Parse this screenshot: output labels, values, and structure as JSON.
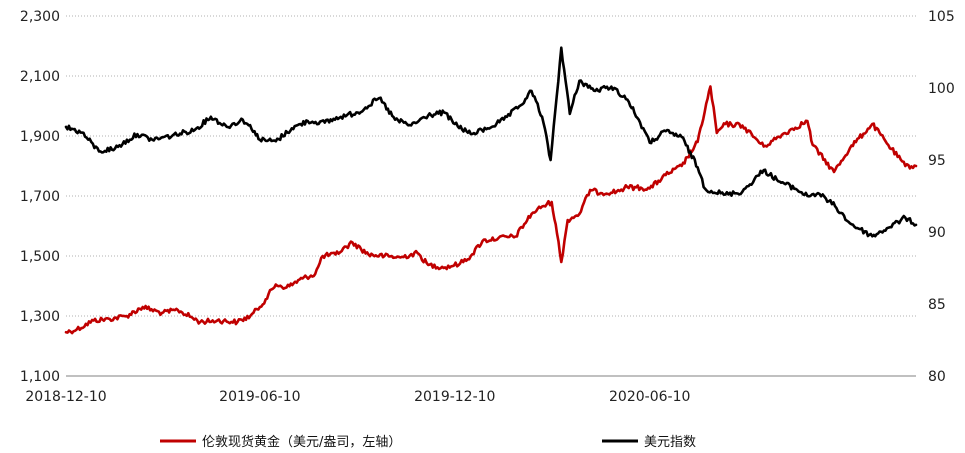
{
  "chart_data": {
    "type": "line",
    "title": "",
    "xlabel": "",
    "ylabel_left": "",
    "ylabel_right": "",
    "x_ticks": [
      "2018-12-10",
      "2019-06-10",
      "2019-12-10",
      "2020-06-10"
    ],
    "x_range": [
      "2018-12-10",
      "2021-02-15"
    ],
    "y_left": {
      "min": 1100,
      "max": 2300,
      "ticks": [
        "1,100",
        "1,300",
        "1,500",
        "1,700",
        "1,900",
        "2,100",
        "2,300"
      ]
    },
    "y_right": {
      "min": 80,
      "max": 105,
      "ticks": [
        "80",
        "85",
        "90",
        "95",
        "100",
        "105"
      ]
    },
    "grid": "horizontal-dotted",
    "legend_position": "bottom",
    "series": [
      {
        "name": "伦敦现货黄金（美元/盎司，左轴）",
        "axis": "left",
        "color": "#c00000",
        "points": [
          [
            "2018-12-10",
            1246
          ],
          [
            "2018-12-20",
            1255
          ],
          [
            "2019-01-05",
            1285
          ],
          [
            "2019-01-20",
            1290
          ],
          [
            "2019-02-05",
            1300
          ],
          [
            "2019-02-20",
            1330
          ],
          [
            "2019-03-10",
            1310
          ],
          [
            "2019-03-25",
            1320
          ],
          [
            "2019-04-15",
            1280
          ],
          [
            "2019-05-01",
            1285
          ],
          [
            "2019-05-20",
            1280
          ],
          [
            "2019-06-01",
            1300
          ],
          [
            "2019-06-10",
            1330
          ],
          [
            "2019-06-25",
            1405
          ],
          [
            "2019-07-05",
            1395
          ],
          [
            "2019-07-20",
            1425
          ],
          [
            "2019-08-01",
            1440
          ],
          [
            "2019-08-08",
            1500
          ],
          [
            "2019-08-20",
            1505
          ],
          [
            "2019-09-05",
            1545
          ],
          [
            "2019-09-20",
            1505
          ],
          [
            "2019-10-05",
            1500
          ],
          [
            "2019-10-20",
            1495
          ],
          [
            "2019-11-05",
            1510
          ],
          [
            "2019-11-15",
            1470
          ],
          [
            "2019-12-01",
            1462
          ],
          [
            "2019-12-15",
            1475
          ],
          [
            "2019-12-25",
            1500
          ],
          [
            "2020-01-05",
            1550
          ],
          [
            "2020-01-20",
            1560
          ],
          [
            "2020-02-05",
            1565
          ],
          [
            "2020-02-20",
            1640
          ],
          [
            "2020-03-01",
            1665
          ],
          [
            "2020-03-10",
            1680
          ],
          [
            "2020-03-15",
            1575
          ],
          [
            "2020-03-19",
            1480
          ],
          [
            "2020-03-25",
            1620
          ],
          [
            "2020-04-05",
            1640
          ],
          [
            "2020-04-15",
            1720
          ],
          [
            "2020-04-25",
            1710
          ],
          [
            "2020-05-10",
            1715
          ],
          [
            "2020-05-20",
            1730
          ],
          [
            "2020-06-10",
            1725
          ],
          [
            "2020-06-25",
            1770
          ],
          [
            "2020-07-10",
            1800
          ],
          [
            "2020-07-25",
            1880
          ],
          [
            "2020-08-06",
            2065
          ],
          [
            "2020-08-12",
            1910
          ],
          [
            "2020-08-20",
            1940
          ],
          [
            "2020-09-05",
            1935
          ],
          [
            "2020-09-25",
            1865
          ],
          [
            "2020-10-15",
            1910
          ],
          [
            "2020-11-05",
            1950
          ],
          [
            "2020-11-10",
            1870
          ],
          [
            "2020-11-30",
            1780
          ],
          [
            "2020-12-15",
            1860
          ],
          [
            "2021-01-05",
            1940
          ],
          [
            "2021-01-20",
            1870
          ],
          [
            "2021-02-05",
            1800
          ],
          [
            "2021-02-15",
            1800
          ]
        ]
      },
      {
        "name": "美元指数",
        "axis": "right",
        "color": "#000000",
        "points": [
          [
            "2018-12-10",
            97.3
          ],
          [
            "2018-12-25",
            96.9
          ],
          [
            "2019-01-10",
            95.6
          ],
          [
            "2019-01-25",
            95.8
          ],
          [
            "2019-02-15",
            96.8
          ],
          [
            "2019-03-01",
            96.4
          ],
          [
            "2019-03-20",
            96.7
          ],
          [
            "2019-04-10",
            97.1
          ],
          [
            "2019-04-25",
            98.0
          ],
          [
            "2019-05-10",
            97.3
          ],
          [
            "2019-05-25",
            97.8
          ],
          [
            "2019-06-05",
            97.0
          ],
          [
            "2019-06-10",
            96.4
          ],
          [
            "2019-06-25",
            96.3
          ],
          [
            "2019-07-10",
            97.2
          ],
          [
            "2019-07-25",
            97.7
          ],
          [
            "2019-08-10",
            97.6
          ],
          [
            "2019-08-25",
            98.0
          ],
          [
            "2019-09-10",
            98.3
          ],
          [
            "2019-09-30",
            99.3
          ],
          [
            "2019-10-15",
            97.8
          ],
          [
            "2019-10-30",
            97.4
          ],
          [
            "2019-11-15",
            98.1
          ],
          [
            "2019-11-30",
            98.3
          ],
          [
            "2019-12-10",
            97.5
          ],
          [
            "2019-12-25",
            96.8
          ],
          [
            "2020-01-10",
            97.2
          ],
          [
            "2020-01-25",
            97.8
          ],
          [
            "2020-02-10",
            98.8
          ],
          [
            "2020-02-20",
            99.8
          ],
          [
            "2020-03-01",
            98.0
          ],
          [
            "2020-03-09",
            95.0
          ],
          [
            "2020-03-19",
            102.8
          ],
          [
            "2020-03-27",
            98.2
          ],
          [
            "2020-04-05",
            100.5
          ],
          [
            "2020-04-20",
            99.8
          ],
          [
            "2020-05-05",
            100.1
          ],
          [
            "2020-05-20",
            99.2
          ],
          [
            "2020-06-01",
            97.6
          ],
          [
            "2020-06-10",
            96.2
          ],
          [
            "2020-06-25",
            97.0
          ],
          [
            "2020-07-10",
            96.6
          ],
          [
            "2020-07-25",
            94.5
          ],
          [
            "2020-08-01",
            93.0
          ],
          [
            "2020-08-20",
            92.6
          ],
          [
            "2020-09-05",
            92.8
          ],
          [
            "2020-09-25",
            94.3
          ],
          [
            "2020-10-10",
            93.5
          ],
          [
            "2020-10-25",
            93.0
          ],
          [
            "2020-11-05",
            92.5
          ],
          [
            "2020-11-15",
            92.7
          ],
          [
            "2020-12-01",
            91.8
          ],
          [
            "2020-12-15",
            90.6
          ],
          [
            "2021-01-05",
            89.7
          ],
          [
            "2021-01-20",
            90.3
          ],
          [
            "2021-02-05",
            91.0
          ],
          [
            "2021-02-15",
            90.5
          ]
        ]
      }
    ]
  }
}
